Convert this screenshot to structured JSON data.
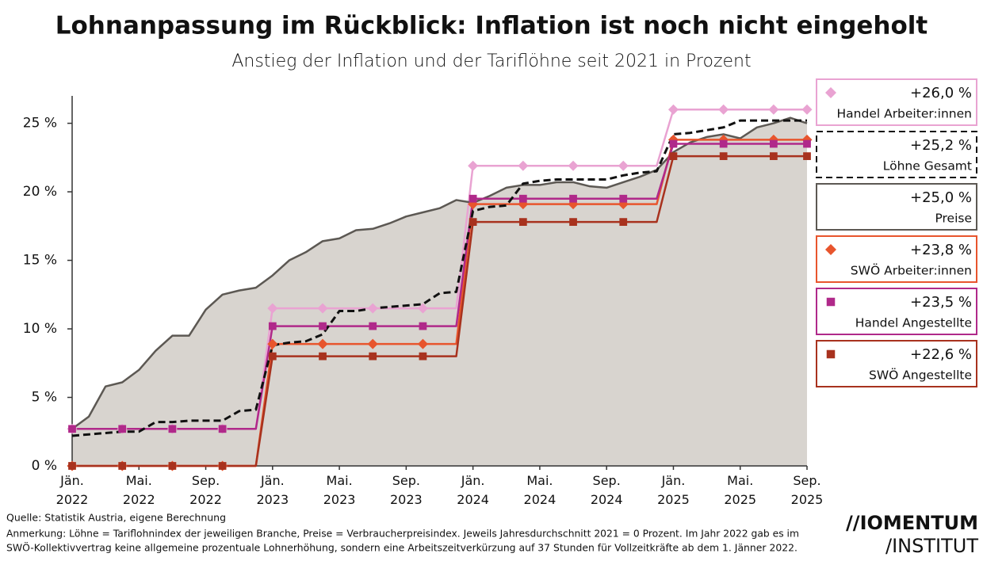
{
  "chart_data": {
    "type": "line",
    "title": "Lohnanpassung im Rückblick: Inflation ist noch nicht eingeholt",
    "subtitle": "Anstieg der Inflation und der Tariflöhne seit 2021 in Prozent",
    "source": "Quelle: Statistik Austria, eigene Berechnung",
    "note": [
      "Anmerkung: Löhne = Tariflohnindex der jeweiligen Branche, Preise = Verbraucherpreisindex. Jeweils Jahresdurchschnitt 2021 = 0 Prozent. Im Jahr 2022 gab es im",
      "SWÖ-Kollektivvertrag keine allgemeine prozentuale Lohnerhöhung, sondern eine Arbeitszeitverkürzung auf 37 Stunden für Vollzeitkräfte ab dem 1. Jänner 2022."
    ],
    "logo": [
      "//IOMENTUM",
      "/INSTITUT"
    ],
    "categories": [
      "Jän. 2022",
      null,
      null,
      null,
      "Mai. 2022",
      null,
      null,
      null,
      "Sep. 2022",
      null,
      null,
      null,
      "Jän. 2023",
      null,
      null,
      null,
      "Mai. 2023",
      null,
      null,
      null,
      "Sep. 2023",
      null,
      null,
      null,
      "Jän. 2024",
      null,
      null,
      null,
      "Mai. 2024",
      null,
      null,
      null,
      "Sep. 2024",
      null,
      null,
      null,
      "Jän. 2025",
      null,
      null,
      null,
      "Mai. 2025",
      null,
      null,
      null,
      "Sep. 2025"
    ],
    "ylim": [
      0,
      27
    ],
    "yticks": [
      {
        "value": 0,
        "label": "0 %"
      },
      {
        "value": 5,
        "label": "5 %"
      },
      {
        "value": 10,
        "label": "10 %"
      },
      {
        "value": 15,
        "label": "15 %"
      },
      {
        "value": 20,
        "label": "20 %"
      },
      {
        "value": 25,
        "label": "25 %"
      }
    ],
    "series": [
      {
        "name": "Handel Arbeiter:innen",
        "color": "#e9a3d2",
        "marker": "diamond",
        "value_label": "+26,0 %",
        "values": [
          2.7,
          2.7,
          2.7,
          2.7,
          2.7,
          2.7,
          2.7,
          2.7,
          2.7,
          2.7,
          2.7,
          2.7,
          11.5,
          11.5,
          11.5,
          11.5,
          11.5,
          11.5,
          11.5,
          11.5,
          11.5,
          11.5,
          11.5,
          11.5,
          21.9,
          21.9,
          21.9,
          21.9,
          21.9,
          21.9,
          21.9,
          21.9,
          21.9,
          21.9,
          21.9,
          21.9,
          26,
          26,
          26,
          26,
          26,
          26,
          26,
          26,
          26
        ]
      },
      {
        "name": "Löhne Gesamt",
        "color": "#111111",
        "dashed": true,
        "value_label": "+25,2 %",
        "values": [
          2.2,
          2.3,
          2.4,
          2.5,
          2.5,
          3.2,
          3.2,
          3.3,
          3.3,
          3.3,
          4.0,
          4.1,
          8.8,
          9.0,
          9.1,
          9.6,
          11.3,
          11.3,
          11.5,
          11.6,
          11.7,
          11.8,
          12.6,
          12.7,
          18.6,
          18.9,
          19.0,
          20.6,
          20.8,
          20.9,
          20.9,
          20.9,
          20.9,
          21.2,
          21.4,
          21.5,
          24.2,
          24.3,
          24.5,
          24.7,
          25.2,
          25.2,
          25.2,
          25.2,
          25.2
        ]
      },
      {
        "name": "Preise",
        "color": "#5c5853",
        "fill": "#d8d4cf",
        "value_label": "+25,0 %",
        "values": [
          2.7,
          3.6,
          5.8,
          6.1,
          7.0,
          8.4,
          9.5,
          9.5,
          11.4,
          12.5,
          12.8,
          13.0,
          13.9,
          15.0,
          15.6,
          16.4,
          16.6,
          17.2,
          17.3,
          17.7,
          18.2,
          18.5,
          18.8,
          19.4,
          19.2,
          19.7,
          20.3,
          20.5,
          20.5,
          20.7,
          20.7,
          20.4,
          20.3,
          20.7,
          21.1,
          21.6,
          22.9,
          23.6,
          24.0,
          24.2,
          23.9,
          24.7,
          25.0,
          25.4,
          25.0
        ]
      },
      {
        "name": "SWÖ Arbeiter:innen",
        "color": "#e8552d",
        "marker": "diamond",
        "value_label": "+23,8 %",
        "values": [
          0,
          0,
          0,
          0,
          0,
          0,
          0,
          0,
          0,
          0,
          0,
          0,
          8.9,
          8.9,
          8.9,
          8.9,
          8.9,
          8.9,
          8.9,
          8.9,
          8.9,
          8.9,
          8.9,
          8.9,
          19.1,
          19.1,
          19.1,
          19.1,
          19.1,
          19.1,
          19.1,
          19.1,
          19.1,
          19.1,
          19.1,
          19.1,
          23.8,
          23.8,
          23.8,
          23.8,
          23.8,
          23.8,
          23.8,
          23.8,
          23.8
        ]
      },
      {
        "name": "Handel Angestellte",
        "color": "#b0298a",
        "marker": "square",
        "value_label": "+23,5 %",
        "values": [
          2.7,
          2.7,
          2.7,
          2.7,
          2.7,
          2.7,
          2.7,
          2.7,
          2.7,
          2.7,
          2.7,
          2.7,
          10.2,
          10.2,
          10.2,
          10.2,
          10.2,
          10.2,
          10.2,
          10.2,
          10.2,
          10.2,
          10.2,
          10.2,
          19.5,
          19.5,
          19.5,
          19.5,
          19.5,
          19.5,
          19.5,
          19.5,
          19.5,
          19.5,
          19.5,
          19.5,
          23.5,
          23.5,
          23.5,
          23.5,
          23.5,
          23.5,
          23.5,
          23.5,
          23.5
        ]
      },
      {
        "name": "SWÖ Angestellte",
        "color": "#a8321e",
        "marker": "square",
        "value_label": "+22,6 %",
        "values": [
          0,
          0,
          0,
          0,
          0,
          0,
          0,
          0,
          0,
          0,
          0,
          0,
          8.0,
          8.0,
          8.0,
          8.0,
          8.0,
          8.0,
          8.0,
          8.0,
          8.0,
          8.0,
          8.0,
          8.0,
          17.8,
          17.8,
          17.8,
          17.8,
          17.8,
          17.8,
          17.8,
          17.8,
          17.8,
          17.8,
          17.8,
          17.8,
          22.6,
          22.6,
          22.6,
          22.6,
          22.6,
          22.6,
          22.6,
          22.6,
          22.6
        ]
      }
    ]
  }
}
